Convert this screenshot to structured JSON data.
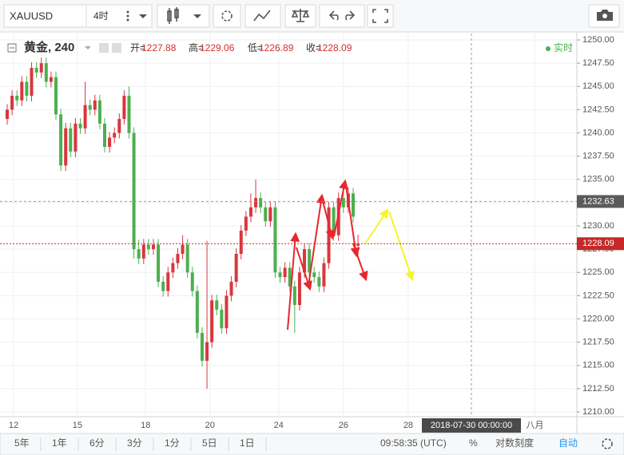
{
  "toolbar": {
    "symbol": "XAUUSD",
    "interval": "4时"
  },
  "chart_data": {
    "type": "candlestick",
    "title": "黄金, 240",
    "ohlc_labels": [
      "开=",
      "高=",
      "低=",
      "收="
    ],
    "realtime": "实时",
    "up_color": "#d9363e",
    "down_color": "#4caf50",
    "open": [
      1241.5,
      1242.5,
      1244,
      1243.5,
      1245.5,
      1244,
      1247,
      1246.5,
      1247.5,
      1245.5,
      1246,
      1242,
      1236.5,
      1240.5,
      1238,
      1241,
      1240.5,
      1243,
      1242.5,
      1243.5,
      1241,
      1238.5,
      1239.5,
      1240,
      1241.5,
      1244,
      1240,
      1227.5,
      1226.5,
      1228,
      1227.5,
      1228,
      1224,
      1223,
      1225,
      1226,
      1227,
      1228,
      1225,
      1223,
      1218.5,
      1215.5,
      1217.5,
      1222,
      1221,
      1219,
      1222.5,
      1224,
      1227,
      1229.5,
      1231,
      1232,
      1233,
      1232,
      1230.5,
      1232,
      1225,
      1224.5,
      1225.5,
      1223.5,
      1221.5,
      1225,
      1227.5,
      1225,
      1224.5,
      1223.5,
      1226,
      1232,
      1229,
      1233,
      1232,
      1233.5,
      1227.88
    ],
    "high": [
      1243.1,
      1244.6,
      1244.6,
      1246.1,
      1246.1,
      1247.6,
      1247.6,
      1248.1,
      1248.1,
      1246.6,
      1246.6,
      1242.6,
      1241.1,
      1241.1,
      1241.6,
      1241.6,
      1245.5,
      1243.6,
      1244.1,
      1244.1,
      1241.6,
      1240.1,
      1240.6,
      1242.1,
      1244.6,
      1245,
      1240.6,
      1228.5,
      1228.6,
      1228.6,
      1228.6,
      1228.6,
      1224.6,
      1225.6,
      1226.6,
      1227.6,
      1229,
      1228.6,
      1225.6,
      1223.6,
      1219.1,
      1228.4,
      1222.6,
      1222.6,
      1221.6,
      1223.1,
      1224.6,
      1227.6,
      1230.1,
      1231.6,
      1233.5,
      1235,
      1233.6,
      1232.6,
      1232.6,
      1232.6,
      1225.6,
      1226.1,
      1226.1,
      1224.1,
      1225.6,
      1228.1,
      1228.1,
      1225.6,
      1225.1,
      1226.6,
      1232.6,
      1232.6,
      1233.6,
      1234.5,
      1234.1,
      1234.1,
      1229.06
    ],
    "low": [
      1240.9,
      1241.9,
      1242.9,
      1242.9,
      1243.4,
      1243.4,
      1245.9,
      1245.9,
      1244.9,
      1244.9,
      1241.4,
      1235.9,
      1235.9,
      1237.4,
      1237.4,
      1239.9,
      1239.9,
      1241.9,
      1241.9,
      1240.4,
      1237.9,
      1237.9,
      1238.9,
      1239.4,
      1240.9,
      1239.4,
      1226.5,
      1225.9,
      1225.9,
      1226.9,
      1226.9,
      1223.4,
      1222.4,
      1222.4,
      1224.4,
      1225.4,
      1226.4,
      1224.4,
      1222.4,
      1217.9,
      1214.9,
      1212.5,
      1216.9,
      1220.4,
      1218.4,
      1218.4,
      1221.9,
      1223.4,
      1226.4,
      1228.9,
      1230.4,
      1231.4,
      1231.4,
      1229.9,
      1229.9,
      1224.4,
      1223.9,
      1223.9,
      1222.9,
      1218.5,
      1220.9,
      1224.4,
      1224.4,
      1223.9,
      1222.9,
      1222.9,
      1225.4,
      1228.4,
      1228.4,
      1231.4,
      1231.4,
      1230.4,
      1226.89
    ],
    "close": [
      1242.5,
      1244,
      1243.5,
      1245.5,
      1244,
      1247,
      1246.5,
      1247.5,
      1245.5,
      1246,
      1242,
      1236.5,
      1240.5,
      1238,
      1241,
      1240.5,
      1243,
      1242.5,
      1243.5,
      1241,
      1238.5,
      1239.5,
      1240,
      1241.5,
      1244,
      1240,
      1227.5,
      1226.5,
      1228,
      1227.5,
      1228,
      1224,
      1223,
      1225,
      1226,
      1227,
      1228,
      1225,
      1223,
      1218.5,
      1215.5,
      1217.5,
      1222,
      1221,
      1219,
      1222.5,
      1224,
      1227,
      1229.5,
      1231,
      1232,
      1233,
      1232,
      1230.5,
      1232,
      1225,
      1224.5,
      1225.5,
      1223.5,
      1221.5,
      1225,
      1227.5,
      1225,
      1224.5,
      1223.5,
      1226,
      1232,
      1229,
      1233,
      1232,
      1233.5,
      1231,
      1228.09
    ],
    "xlim": [
      -0.66,
      117.4
    ],
    "xticks": [
      {
        "value": 1.3,
        "label": "12"
      },
      {
        "value": 14.4,
        "label": "15"
      },
      {
        "value": 28.4,
        "label": "18"
      },
      {
        "value": 41.6,
        "label": "20"
      },
      {
        "value": 55.7,
        "label": "24"
      },
      {
        "value": 69,
        "label": "26"
      },
      {
        "value": 82.3,
        "label": "28"
      },
      {
        "value": 108.3,
        "label": "八月"
      }
    ],
    "ylim": [
      1209.49,
      1250.69
    ],
    "yticks": [
      {
        "value": 1250,
        "label": "1250.00"
      },
      {
        "value": 1247.5,
        "label": "1247.50"
      },
      {
        "value": 1245,
        "label": "1245.00"
      },
      {
        "value": 1242.5,
        "label": "1242.50"
      },
      {
        "value": 1240,
        "label": "1240.00"
      },
      {
        "value": 1237.5,
        "label": "1237.50"
      },
      {
        "value": 1235,
        "label": "1235.00"
      },
      {
        "value": 1232.5,
        "label": "1232.50"
      },
      {
        "value": 1230,
        "label": "1230.00"
      },
      {
        "value": 1227.5,
        "label": "1227.50"
      },
      {
        "value": 1225,
        "label": "1225.00"
      },
      {
        "value": 1222.5,
        "label": "1222.50"
      },
      {
        "value": 1220,
        "label": "1220.00"
      },
      {
        "value": 1217.5,
        "label": "1217.50"
      },
      {
        "value": 1215,
        "label": "1215.00"
      },
      {
        "value": 1212.5,
        "label": "1212.50"
      },
      {
        "value": 1210,
        "label": "1210.00"
      }
    ],
    "grid": true,
    "crosshair": {
      "price": 1232.63,
      "time": "2018-07-30 00:00:00"
    }
  },
  "bottom_bar": {
    "ranges": [
      "5年",
      "1年",
      "6分",
      "3分",
      "1分",
      "5日",
      "1日"
    ],
    "clock": "09:58:35 (UTC)",
    "percent": "%",
    "log": "对数刻度",
    "auto": "自动"
  }
}
